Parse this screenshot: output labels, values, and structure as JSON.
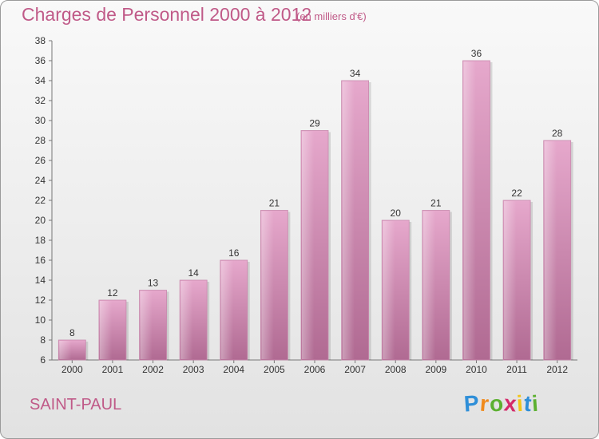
{
  "chart_data": {
    "type": "bar",
    "title": "Charges de Personnel 2000 à 2012",
    "subtitle": "(en milliers d'€)",
    "categories": [
      "2000",
      "2001",
      "2002",
      "2003",
      "2004",
      "2005",
      "2006",
      "2007",
      "2008",
      "2009",
      "2010",
      "2011",
      "2012"
    ],
    "values": [
      8,
      12,
      13,
      14,
      16,
      21,
      29,
      34,
      20,
      21,
      36,
      22,
      28
    ],
    "ylim": [
      6,
      38
    ],
    "yticks": [
      6,
      8,
      10,
      12,
      14,
      16,
      18,
      20,
      22,
      24,
      26,
      28,
      30,
      32,
      34,
      36,
      38
    ],
    "grid": false,
    "data_labels": true,
    "bar_color": "#d68fb6"
  },
  "commune": "SAINT-PAUL",
  "logo": {
    "letters": [
      "P",
      "r",
      "o",
      "x",
      "i",
      "t",
      "i"
    ],
    "colors": [
      "#2f8fd8",
      "#f08a1c",
      "#5cb030",
      "#d42a6a",
      "#f2c418",
      "#2f8fd8",
      "#5cb030"
    ]
  }
}
